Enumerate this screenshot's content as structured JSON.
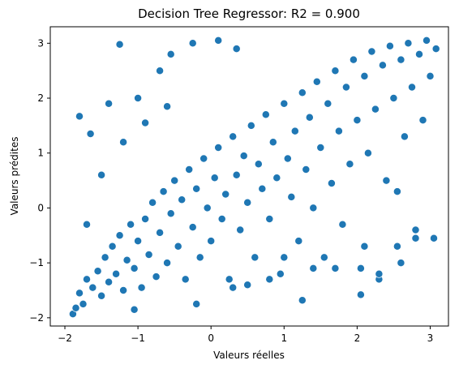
{
  "chart_data": {
    "type": "scatter",
    "title": "Decision Tree Regressor: R2 = 0.900",
    "xlabel": "Valeurs réelles",
    "ylabel": "Valeurs prédites",
    "xlim": [
      -2.2,
      3.25
    ],
    "ylim": [
      -2.15,
      3.3
    ],
    "xticks": [
      -2,
      -1,
      0,
      1,
      2,
      3
    ],
    "yticks": [
      -2,
      -1,
      0,
      1,
      2,
      3
    ],
    "xtick_labels": [
      "−2",
      "−1",
      "0",
      "1",
      "2",
      "3"
    ],
    "ytick_labels": [
      "−2",
      "−1",
      "0",
      "1",
      "2",
      "3"
    ],
    "grid": false,
    "legend": "none",
    "color": "#1f77b4",
    "series": [
      {
        "points": [
          [
            -1.89,
            -1.93
          ],
          [
            -1.85,
            -1.82
          ],
          [
            -1.8,
            -1.55
          ],
          [
            -1.75,
            -1.75
          ],
          [
            -1.7,
            -1.3
          ],
          [
            -1.62,
            -1.45
          ],
          [
            -1.55,
            -1.15
          ],
          [
            -1.5,
            -1.6
          ],
          [
            -1.45,
            -0.9
          ],
          [
            -1.4,
            -1.35
          ],
          [
            -1.35,
            -0.7
          ],
          [
            -1.3,
            -1.2
          ],
          [
            -1.25,
            -0.5
          ],
          [
            -1.2,
            -1.5
          ],
          [
            -1.15,
            -0.95
          ],
          [
            -1.1,
            -0.3
          ],
          [
            -1.05,
            -1.1
          ],
          [
            -1.0,
            -0.6
          ],
          [
            -0.95,
            -1.45
          ],
          [
            -0.9,
            -0.2
          ],
          [
            -0.85,
            -0.85
          ],
          [
            -0.8,
            0.1
          ],
          [
            -0.75,
            -1.25
          ],
          [
            -0.7,
            -0.45
          ],
          [
            -0.65,
            0.3
          ],
          [
            -0.6,
            -1.0
          ],
          [
            -0.55,
            -0.1
          ],
          [
            -0.5,
            0.5
          ],
          [
            -0.45,
            -0.7
          ],
          [
            -0.4,
            0.15
          ],
          [
            -0.35,
            -1.3
          ],
          [
            -0.3,
            0.7
          ],
          [
            -0.25,
            -0.35
          ],
          [
            -0.2,
            0.35
          ],
          [
            -0.15,
            -0.9
          ],
          [
            -0.1,
            0.9
          ],
          [
            -0.05,
            0.0
          ],
          [
            0.0,
            -0.6
          ],
          [
            0.05,
            0.55
          ],
          [
            0.1,
            1.1
          ],
          [
            0.15,
            -0.2
          ],
          [
            0.2,
            0.25
          ],
          [
            0.25,
            -1.3
          ],
          [
            0.3,
            1.3
          ],
          [
            0.35,
            0.6
          ],
          [
            0.4,
            -0.4
          ],
          [
            0.45,
            0.95
          ],
          [
            0.5,
            0.1
          ],
          [
            0.55,
            1.5
          ],
          [
            0.6,
            -0.9
          ],
          [
            0.65,
            0.8
          ],
          [
            0.7,
            0.35
          ],
          [
            0.75,
            1.7
          ],
          [
            0.8,
            -0.2
          ],
          [
            0.85,
            1.2
          ],
          [
            0.9,
            0.55
          ],
          [
            0.95,
            -1.2
          ],
          [
            1.0,
            1.9
          ],
          [
            1.05,
            0.9
          ],
          [
            1.1,
            0.2
          ],
          [
            1.15,
            1.4
          ],
          [
            1.2,
            -0.6
          ],
          [
            1.25,
            2.1
          ],
          [
            1.3,
            0.7
          ],
          [
            1.35,
            1.65
          ],
          [
            1.4,
            0.0
          ],
          [
            1.45,
            2.3
          ],
          [
            1.5,
            1.1
          ],
          [
            1.55,
            -0.9
          ],
          [
            1.6,
            1.9
          ],
          [
            1.65,
            0.45
          ],
          [
            1.7,
            2.5
          ],
          [
            1.75,
            1.4
          ],
          [
            1.8,
            -0.3
          ],
          [
            1.85,
            2.2
          ],
          [
            1.9,
            0.8
          ],
          [
            1.95,
            2.7
          ],
          [
            2.0,
            1.6
          ],
          [
            2.05,
            -1.1
          ],
          [
            2.1,
            2.4
          ],
          [
            2.15,
            1.0
          ],
          [
            2.2,
            2.85
          ],
          [
            2.25,
            1.8
          ],
          [
            2.3,
            -1.3
          ],
          [
            2.35,
            2.6
          ],
          [
            2.4,
            0.5
          ],
          [
            2.45,
            2.95
          ],
          [
            2.5,
            2.0
          ],
          [
            2.55,
            -0.7
          ],
          [
            2.6,
            2.7
          ],
          [
            2.65,
            1.3
          ],
          [
            2.7,
            3.0
          ],
          [
            2.75,
            2.2
          ],
          [
            2.8,
            -0.4
          ],
          [
            2.85,
            2.8
          ],
          [
            2.9,
            1.6
          ],
          [
            2.95,
            3.05
          ],
          [
            3.0,
            2.4
          ],
          [
            3.05,
            -0.55
          ],
          [
            3.08,
            2.9
          ],
          [
            -1.25,
            2.98
          ],
          [
            -1.8,
            1.67
          ],
          [
            -1.65,
            1.35
          ],
          [
            -1.4,
            1.9
          ],
          [
            -1.0,
            2.0
          ],
          [
            -0.7,
            2.5
          ],
          [
            -0.55,
            2.8
          ],
          [
            -0.25,
            3.0
          ],
          [
            0.1,
            3.05
          ],
          [
            0.35,
            2.9
          ],
          [
            -1.05,
            -1.85
          ],
          [
            -0.2,
            -1.75
          ],
          [
            0.3,
            -1.45
          ],
          [
            1.25,
            -1.68
          ],
          [
            2.05,
            -1.58
          ],
          [
            2.1,
            -0.7
          ],
          [
            2.3,
            -1.2
          ],
          [
            2.6,
            -1.0
          ],
          [
            2.8,
            -0.55
          ],
          [
            1.7,
            -1.1
          ],
          [
            -1.7,
            -0.3
          ],
          [
            -1.5,
            0.6
          ],
          [
            -1.2,
            1.2
          ],
          [
            -0.9,
            1.55
          ],
          [
            -0.6,
            1.85
          ],
          [
            0.5,
            -1.4
          ],
          [
            0.8,
            -1.3
          ],
          [
            1.0,
            -0.9
          ],
          [
            1.4,
            -1.1
          ],
          [
            2.55,
            0.3
          ]
        ]
      }
    ]
  }
}
